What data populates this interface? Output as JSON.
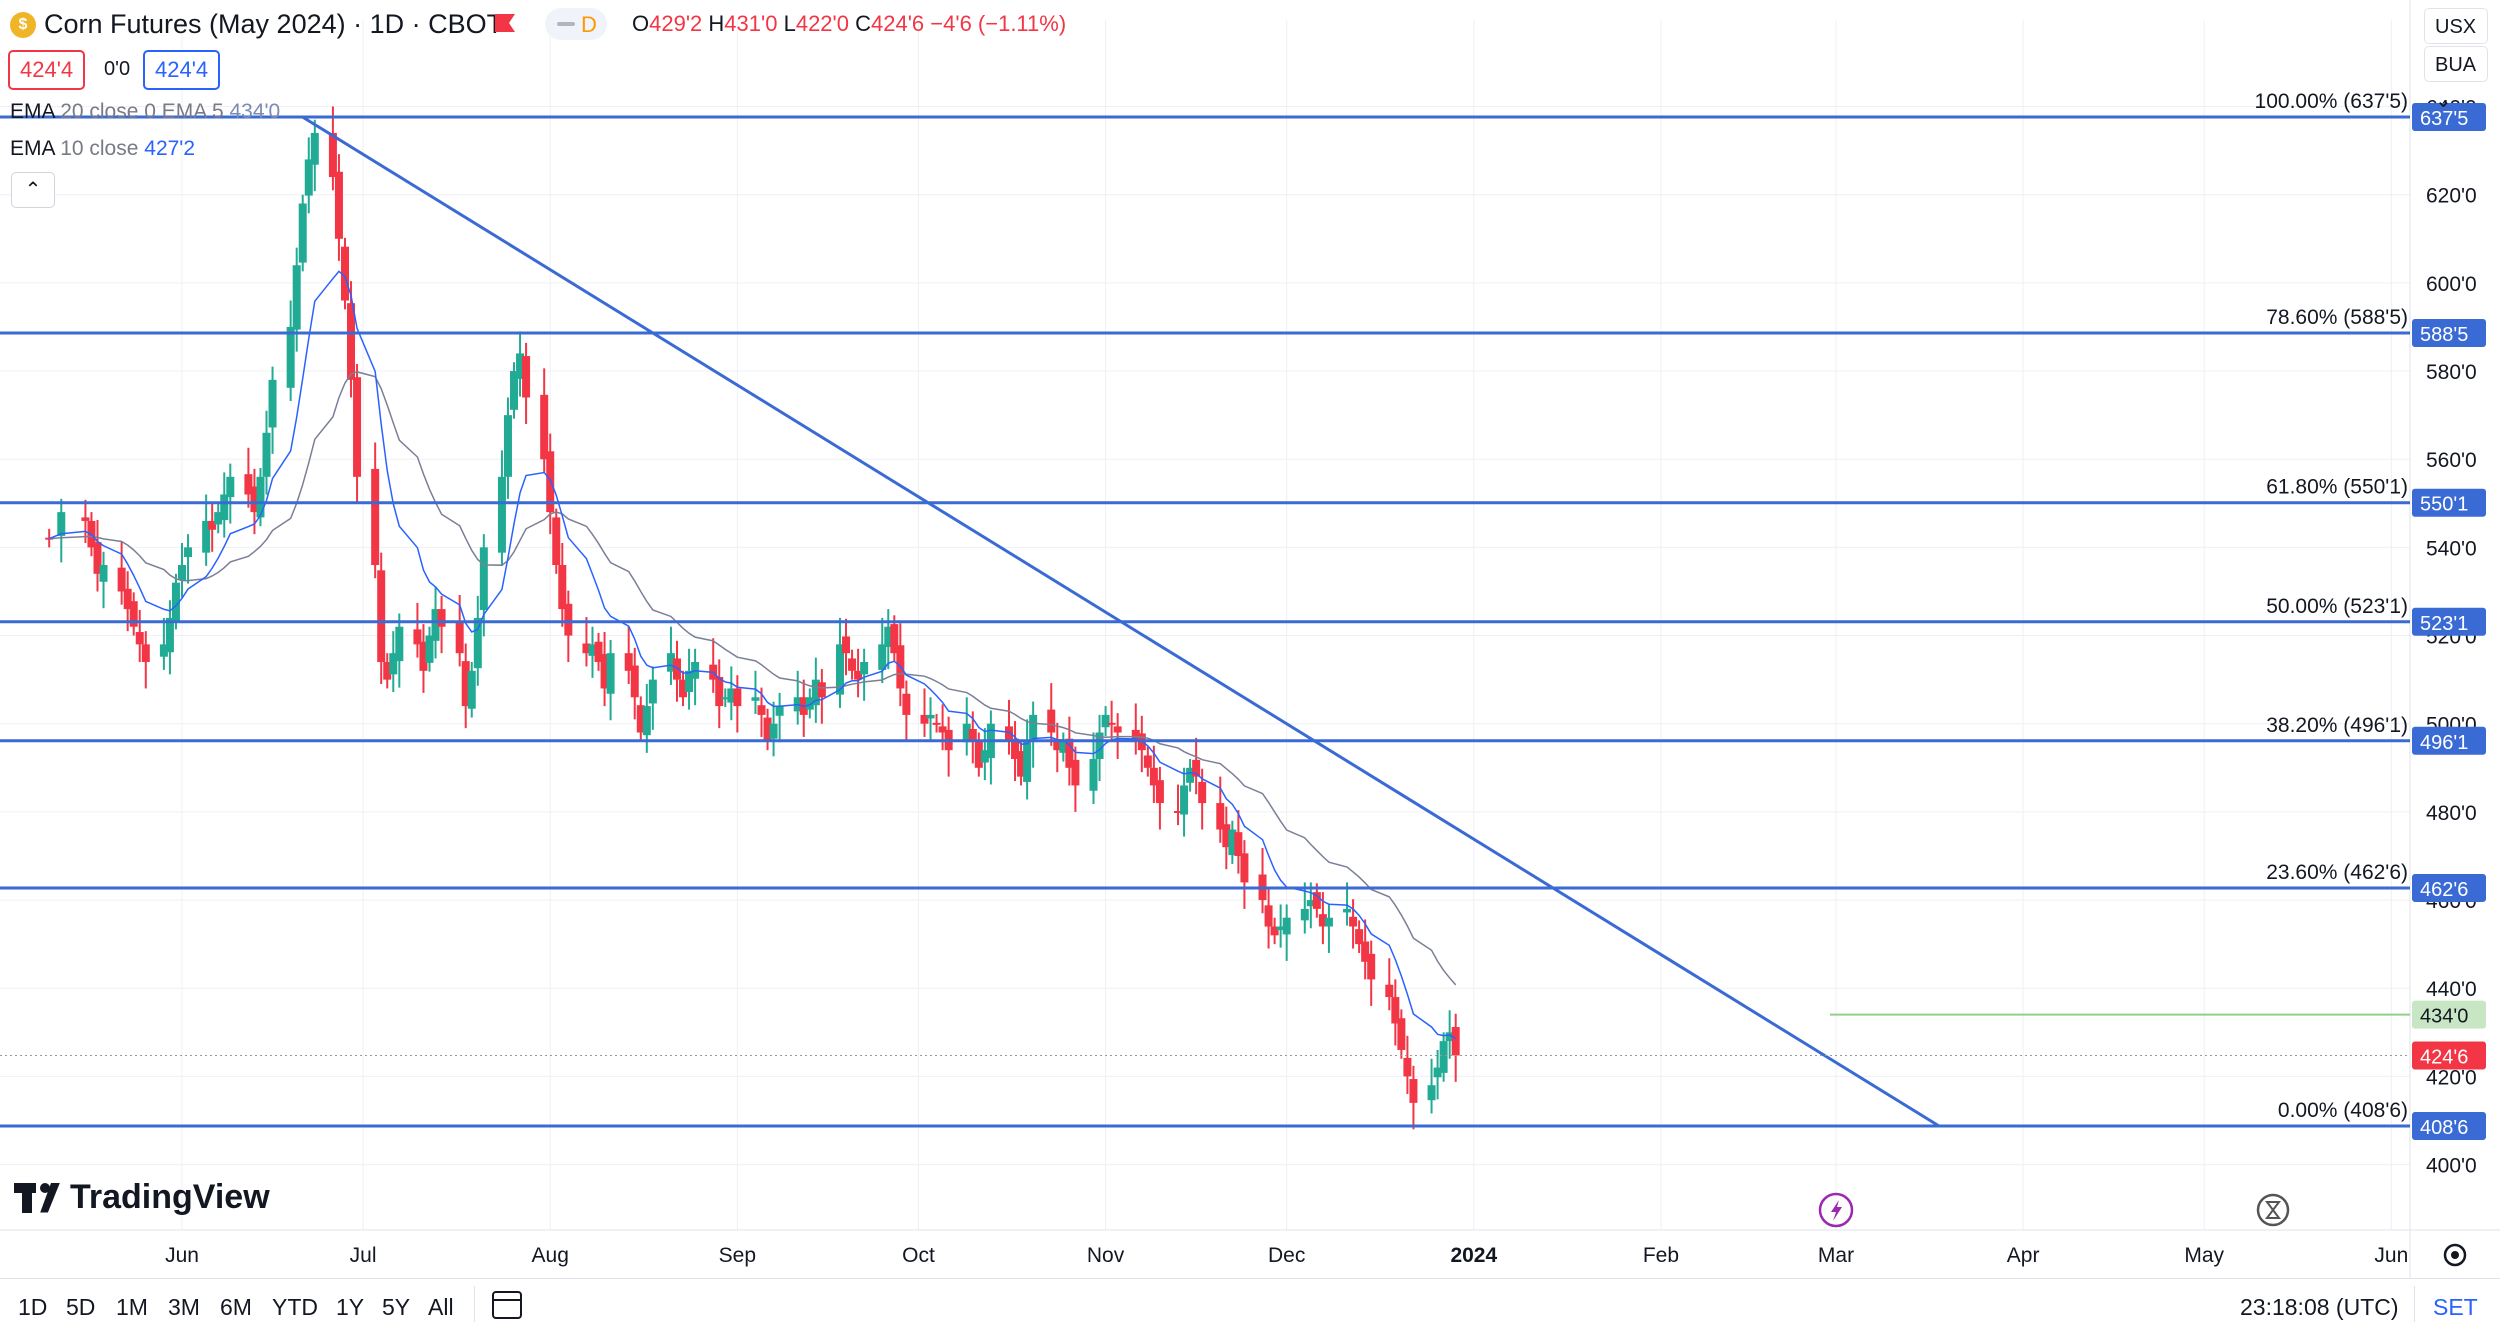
{
  "header": {
    "title": "Corn Futures (May 2024) · 1D · CBOT",
    "interval_badge": "D",
    "ohlc": {
      "o_label": "O",
      "o": "429'2",
      "h_label": "H",
      "h": "431'0",
      "l_label": "L",
      "l": "422'0",
      "c_label": "C",
      "c": "424'6",
      "change": "−4'6 (−1.11%)"
    },
    "sell_price": "424'4",
    "spread": "0'0",
    "buy_price": "424'4"
  },
  "indicators": [
    {
      "name": "EMA",
      "params": "20 close 0 EMA 5",
      "value": "434'0"
    },
    {
      "name": "EMA",
      "params": "10 close",
      "value": "427'2"
    }
  ],
  "collapse_icon": "chevron-up-icon",
  "right_controls": {
    "currency": "USX",
    "unit": "BUA"
  },
  "colors": {
    "up": "#22ab94",
    "down": "#f23645",
    "fib": "#3a6ad4",
    "ema_slow": "#7a7f96",
    "ema_fast": "#2962ff",
    "ema_line": "#92d08a",
    "grid": "#eef0f4"
  },
  "chart_data": {
    "type": "candlestick",
    "symbol": "Corn Futures (May 2024)",
    "y_axis_ticks": [
      "640'0",
      "620'0",
      "600'0",
      "580'0",
      "560'0",
      "540'0",
      "520'0",
      "500'0",
      "480'0",
      "460'0",
      "440'0",
      "420'0",
      "400'0"
    ],
    "x_axis_ticks": [
      "Jun",
      "Jul",
      "Aug",
      "Sep",
      "Oct",
      "Nov",
      "Dec",
      "2024",
      "Feb",
      "Mar",
      "Apr",
      "May",
      "Jun"
    ],
    "fib_levels": [
      {
        "label": "100.00% (637'5)",
        "tag": "637'5",
        "value": 637.625
      },
      {
        "label": "78.60% (588'5)",
        "tag": "588'5",
        "value": 588.625
      },
      {
        "label": "61.80% (550'1)",
        "tag": "550'1",
        "value": 550.125
      },
      {
        "label": "50.00% (523'1)",
        "tag": "523'1",
        "value": 523.125
      },
      {
        "label": "38.20% (496'1)",
        "tag": "496'1",
        "value": 496.125
      },
      {
        "label": "23.60% (462'6)",
        "tag": "462'6",
        "value": 462.75
      },
      {
        "label": "0.00% (408'6)",
        "tag": "408'6",
        "value": 408.75
      }
    ],
    "trendline": {
      "from": {
        "date": "2023-06-21",
        "value": 637.6
      },
      "to": {
        "date": "2024-03-18",
        "value": 408.8
      }
    },
    "ema_level": {
      "tag": "434'0",
      "value": 434.0,
      "from": "2024-02-29"
    },
    "last_price": {
      "tag": "424'6",
      "value": 424.75
    },
    "range": {
      "from": "2023-05-10",
      "to": "2024-06-06"
    },
    "candles_close": [
      [
        0,
        542
      ],
      [
        2,
        548
      ],
      [
        4,
        546
      ],
      [
        5,
        540
      ],
      [
        6,
        534
      ],
      [
        7,
        536
      ],
      [
        8,
        530
      ],
      [
        9,
        526
      ],
      [
        10,
        522
      ],
      [
        11,
        518
      ],
      [
        12,
        514
      ],
      [
        13,
        518
      ],
      [
        14,
        524
      ],
      [
        15,
        532
      ],
      [
        16,
        536
      ],
      [
        17,
        540
      ],
      [
        18,
        546
      ],
      [
        19,
        544
      ],
      [
        20,
        548
      ],
      [
        21,
        552
      ],
      [
        22,
        556
      ],
      [
        23,
        552
      ],
      [
        24,
        548
      ],
      [
        25,
        556
      ],
      [
        26,
        566
      ],
      [
        27,
        578
      ],
      [
        28,
        590
      ],
      [
        29,
        604
      ],
      [
        30,
        618
      ],
      [
        31,
        628
      ],
      [
        32,
        634
      ],
      [
        33,
        624
      ],
      [
        34,
        610
      ],
      [
        35,
        596
      ],
      [
        36,
        578
      ],
      [
        37,
        556
      ],
      [
        38,
        536
      ],
      [
        39,
        514
      ],
      [
        40,
        510
      ],
      [
        41,
        516
      ],
      [
        42,
        522
      ],
      [
        43,
        518
      ],
      [
        44,
        512
      ],
      [
        45,
        520
      ],
      [
        46,
        526
      ],
      [
        47,
        522
      ],
      [
        48,
        516
      ],
      [
        49,
        504
      ],
      [
        50,
        512
      ],
      [
        51,
        524
      ],
      [
        52,
        540
      ],
      [
        53,
        556
      ],
      [
        54,
        570
      ],
      [
        55,
        580
      ],
      [
        56,
        584
      ],
      [
        57,
        574
      ],
      [
        58,
        560
      ],
      [
        59,
        548
      ],
      [
        60,
        536
      ],
      [
        61,
        526
      ],
      [
        62,
        520
      ],
      [
        63,
        516
      ],
      [
        64,
        518
      ],
      [
        65,
        514
      ],
      [
        66,
        508
      ],
      [
        67,
        516
      ],
      [
        68,
        512
      ],
      [
        69,
        506
      ],
      [
        70,
        498
      ],
      [
        71,
        504
      ],
      [
        72,
        510
      ],
      [
        73,
        516
      ],
      [
        74,
        510
      ],
      [
        75,
        506
      ],
      [
        76,
        512
      ],
      [
        77,
        514
      ],
      [
        78,
        510
      ],
      [
        79,
        504
      ],
      [
        80,
        506
      ],
      [
        81,
        508
      ],
      [
        82,
        504
      ],
      [
        83,
        506
      ],
      [
        84,
        502
      ],
      [
        85,
        496
      ],
      [
        86,
        500
      ],
      [
        87,
        504
      ],
      [
        88,
        506
      ],
      [
        89,
        502
      ],
      [
        90,
        506
      ],
      [
        91,
        510
      ],
      [
        92,
        506
      ],
      [
        93,
        518
      ],
      [
        94,
        516
      ],
      [
        95,
        512
      ],
      [
        96,
        510
      ],
      [
        97,
        514
      ],
      [
        98,
        518
      ],
      [
        99,
        522
      ],
      [
        100,
        516
      ],
      [
        101,
        508
      ],
      [
        102,
        502
      ],
      [
        103,
        500
      ],
      [
        104,
        502
      ],
      [
        105,
        500
      ],
      [
        106,
        498
      ],
      [
        107,
        494
      ],
      [
        108,
        500
      ],
      [
        109,
        496
      ],
      [
        110,
        490
      ],
      [
        111,
        494
      ],
      [
        112,
        500
      ],
      [
        113,
        496
      ],
      [
        114,
        492
      ],
      [
        115,
        488
      ],
      [
        116,
        496
      ],
      [
        117,
        502
      ],
      [
        118,
        498
      ],
      [
        119,
        494
      ],
      [
        120,
        496
      ],
      [
        121,
        490
      ],
      [
        122,
        486
      ],
      [
        123,
        492
      ],
      [
        124,
        498
      ],
      [
        125,
        502
      ],
      [
        126,
        500
      ],
      [
        127,
        498
      ],
      [
        128,
        496
      ],
      [
        129,
        494
      ],
      [
        130,
        490
      ],
      [
        131,
        486
      ],
      [
        132,
        482
      ],
      [
        133,
        480
      ],
      [
        134,
        486
      ],
      [
        135,
        490
      ],
      [
        136,
        488
      ],
      [
        137,
        482
      ],
      [
        138,
        476
      ],
      [
        139,
        472
      ],
      [
        140,
        476
      ],
      [
        141,
        470
      ],
      [
        142,
        464
      ],
      [
        143,
        460
      ],
      [
        144,
        454
      ],
      [
        145,
        452
      ],
      [
        146,
        454
      ],
      [
        147,
        456
      ],
      [
        148,
        458
      ],
      [
        149,
        460
      ],
      [
        150,
        458
      ],
      [
        151,
        454
      ],
      [
        152,
        456
      ],
      [
        153,
        458
      ],
      [
        154,
        454
      ],
      [
        155,
        450
      ],
      [
        156,
        446
      ],
      [
        157,
        442
      ],
      [
        158,
        438
      ],
      [
        159,
        432
      ],
      [
        160,
        426
      ],
      [
        161,
        420
      ],
      [
        162,
        414
      ],
      [
        163,
        418
      ],
      [
        164,
        422
      ],
      [
        165,
        428
      ],
      [
        166,
        430
      ],
      [
        167,
        424.75
      ]
    ]
  },
  "logo": {
    "text": "TradingView"
  },
  "bottom": {
    "timeframes": [
      "1D",
      "5D",
      "1M",
      "3M",
      "6M",
      "YTD",
      "1Y",
      "5Y",
      "All"
    ],
    "clock": "23:18:08 (UTC)",
    "session": "SET"
  }
}
